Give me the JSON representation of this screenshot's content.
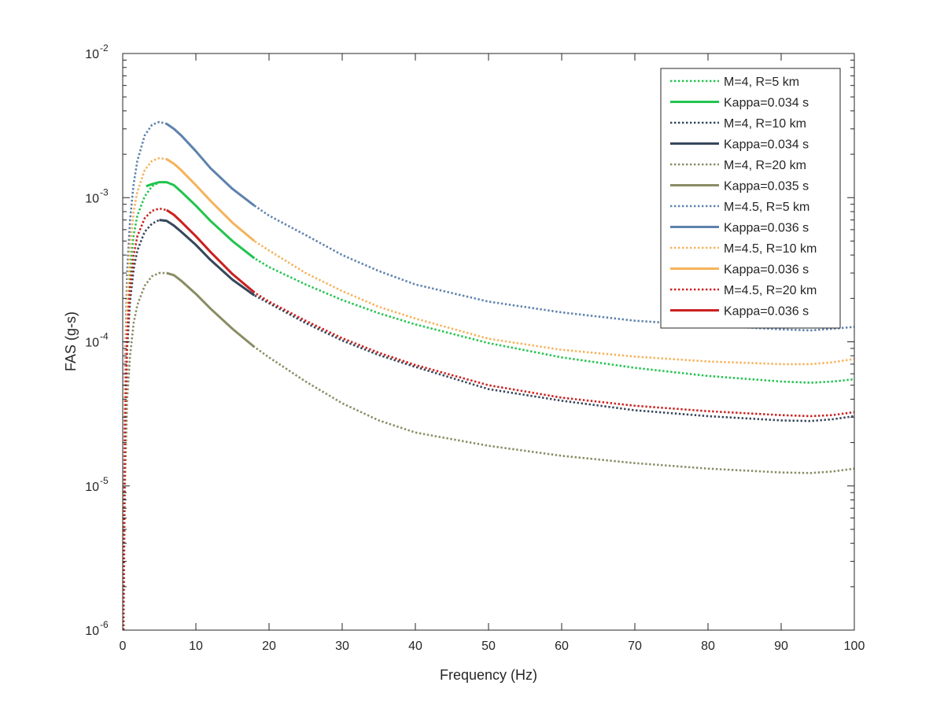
{
  "chart_data": {
    "type": "line",
    "title": "",
    "xlabel": "Frequency (Hz)",
    "ylabel": "FAS (g-s)",
    "xlim": [
      0,
      100
    ],
    "ylim": [
      1e-06,
      0.01
    ],
    "yscale": "log",
    "grid": false,
    "legend_position": "top-right",
    "x_ticks": [
      {
        "value": 0,
        "label": "0"
      },
      {
        "value": 10,
        "label": "10"
      },
      {
        "value": 20,
        "label": "20"
      },
      {
        "value": 30,
        "label": "30"
      },
      {
        "value": 40,
        "label": "40"
      },
      {
        "value": 50,
        "label": "50"
      },
      {
        "value": 60,
        "label": "60"
      },
      {
        "value": 70,
        "label": "70"
      },
      {
        "value": 80,
        "label": "80"
      },
      {
        "value": 90,
        "label": "90"
      },
      {
        "value": 100,
        "label": "100"
      }
    ],
    "y_ticks": [
      {
        "value": 1e-06,
        "base": "10",
        "exp": "-6"
      },
      {
        "value": 1e-05,
        "base": "10",
        "exp": "-5"
      },
      {
        "value": 0.0001,
        "base": "10",
        "exp": "-4"
      },
      {
        "value": 0.001,
        "base": "10",
        "exp": "-3"
      },
      {
        "value": 0.01,
        "base": "10",
        "exp": "-2"
      }
    ],
    "series": [
      {
        "name": "M=4, R=5 km",
        "style": "dotted",
        "color": "#22c44e",
        "x": [
          0.1,
          0.3,
          0.6,
          1,
          1.5,
          2,
          3,
          4,
          5,
          6,
          7,
          8,
          10,
          12,
          15,
          18,
          20,
          25,
          30,
          35,
          40,
          50,
          60,
          70,
          80,
          90,
          94,
          97,
          100
        ],
        "y": [
          1e-06,
          3e-05,
          0.00014,
          0.00032,
          0.00055,
          0.00075,
          0.00102,
          0.0012,
          0.00128,
          0.00128,
          0.00122,
          0.0011,
          0.00088,
          0.00069,
          0.0005,
          0.00038,
          0.00033,
          0.00025,
          0.000195,
          0.000158,
          0.000132,
          9.8e-05,
          7.8e-05,
          6.6e-05,
          5.8e-05,
          5.3e-05,
          5.2e-05,
          5.3e-05,
          5.5e-05
        ]
      },
      {
        "name": "Kappa=0.034 s",
        "style": "solid",
        "color": "#22c44e",
        "x": [
          3.2,
          4,
          5,
          6,
          7,
          8,
          10,
          12,
          15,
          18
        ],
        "y": [
          0.0012,
          0.00124,
          0.00128,
          0.00128,
          0.00122,
          0.0011,
          0.00088,
          0.00069,
          0.0005,
          0.00038
        ]
      },
      {
        "name": "M=4, R=10 km",
        "style": "dotted",
        "color": "#36475a",
        "x": [
          0.1,
          0.3,
          0.6,
          1,
          1.5,
          2,
          3,
          4,
          5,
          6,
          7,
          8,
          10,
          12,
          15,
          18,
          20,
          25,
          30,
          35,
          40,
          50,
          60,
          70,
          80,
          90,
          94,
          97,
          100
        ],
        "y": [
          1e-06,
          2e-05,
          9e-05,
          0.00019,
          0.00032,
          0.00043,
          0.00058,
          0.00066,
          0.0007,
          0.00069,
          0.00064,
          0.00058,
          0.00047,
          0.00037,
          0.00027,
          0.00021,
          0.000185,
          0.000135,
          0.000102,
          8.1e-05,
          6.7e-05,
          4.7e-05,
          3.9e-05,
          3.35e-05,
          3.05e-05,
          2.85e-05,
          2.82e-05,
          2.9e-05,
          3.05e-05
        ]
      },
      {
        "name": "Kappa=0.034 s",
        "style": "solid",
        "color": "#36475a",
        "x": [
          5,
          6,
          7,
          8,
          10,
          12,
          15,
          18
        ],
        "y": [
          0.0007,
          0.00069,
          0.00064,
          0.00058,
          0.00047,
          0.00037,
          0.00027,
          0.00021
        ]
      },
      {
        "name": "M=4, R=20 km",
        "style": "dotted",
        "color": "#8a8c64",
        "x": [
          0.1,
          0.3,
          0.6,
          1,
          1.5,
          2,
          3,
          4,
          5,
          6,
          7,
          8,
          10,
          12,
          15,
          18,
          20,
          25,
          30,
          35,
          40,
          50,
          60,
          70,
          80,
          90,
          94,
          97,
          100
        ],
        "y": [
          1e-06,
          1e-05,
          4e-05,
          8e-05,
          0.000135,
          0.00018,
          0.000245,
          0.000285,
          0.0003,
          0.0003,
          0.00029,
          0.000265,
          0.000215,
          0.00017,
          0.000123,
          9.2e-05,
          7.8e-05,
          5.3e-05,
          3.75e-05,
          2.85e-05,
          2.35e-05,
          1.9e-05,
          1.62e-05,
          1.44e-05,
          1.32e-05,
          1.24e-05,
          1.23e-05,
          1.26e-05,
          1.32e-05
        ]
      },
      {
        "name": "Kappa=0.035 s",
        "style": "solid",
        "color": "#8a8c64",
        "x": [
          6,
          7,
          8,
          10,
          12,
          15,
          18
        ],
        "y": [
          0.0003,
          0.00029,
          0.000265,
          0.000215,
          0.00017,
          0.000123,
          9.2e-05
        ]
      },
      {
        "name": "M=4.5, R=5 km",
        "style": "dotted",
        "color": "#5e82ad",
        "x": [
          0.1,
          0.3,
          0.6,
          1,
          1.5,
          2,
          3,
          4,
          5,
          6,
          7,
          8,
          10,
          12,
          15,
          18,
          20,
          25,
          30,
          35,
          40,
          50,
          60,
          70,
          80,
          90,
          94,
          97,
          100
        ],
        "y": [
          1e-06,
          6e-05,
          0.0003,
          0.0007,
          0.00125,
          0.0018,
          0.0027,
          0.0032,
          0.00335,
          0.00325,
          0.003,
          0.0027,
          0.0021,
          0.0016,
          0.00115,
          0.00088,
          0.00075,
          0.00055,
          0.0004,
          0.00031,
          0.00025,
          0.00019,
          0.00016,
          0.00014,
          0.00013,
          0.000122,
          0.00012,
          0.000123,
          0.000127
        ]
      },
      {
        "name": "Kappa=0.036 s",
        "style": "solid",
        "color": "#5e82ad",
        "x": [
          6,
          7,
          8,
          10,
          12,
          15,
          18
        ],
        "y": [
          0.00325,
          0.003,
          0.0027,
          0.0021,
          0.0016,
          0.00115,
          0.00088
        ]
      },
      {
        "name": "M=4.5, R=10 km",
        "style": "dotted",
        "color": "#f5b35c",
        "x": [
          0.1,
          0.3,
          0.6,
          1,
          1.5,
          2,
          3,
          4,
          5,
          6,
          7,
          8,
          10,
          12,
          15,
          18,
          20,
          25,
          30,
          35,
          40,
          50,
          60,
          70,
          80,
          90,
          94,
          97,
          100
        ],
        "y": [
          1e-06,
          4e-05,
          0.0002,
          0.00046,
          0.0008,
          0.0011,
          0.00155,
          0.0018,
          0.00188,
          0.00185,
          0.00172,
          0.00155,
          0.00122,
          0.00095,
          0.00067,
          0.0005,
          0.00043,
          0.0003,
          0.000225,
          0.000175,
          0.000145,
          0.000105,
          8.8e-05,
          7.9e-05,
          7.3e-05,
          7e-05,
          7e-05,
          7.2e-05,
          7.6e-05
        ]
      },
      {
        "name": "Kappa=0.036 s",
        "style": "solid",
        "color": "#f5b35c",
        "x": [
          6,
          7,
          8,
          10,
          12,
          15,
          18
        ],
        "y": [
          0.00185,
          0.00172,
          0.00155,
          0.00122,
          0.00095,
          0.00067,
          0.0005
        ]
      },
      {
        "name": "M=4.5, R=20 km",
        "style": "dotted",
        "color": "#cc2020",
        "x": [
          0.1,
          0.3,
          0.6,
          1,
          1.5,
          2,
          3,
          4,
          5,
          6,
          7,
          8,
          10,
          12,
          15,
          18,
          20,
          25,
          30,
          35,
          40,
          50,
          60,
          70,
          80,
          90,
          94,
          97,
          100
        ],
        "y": [
          1e-06,
          2.5e-05,
          0.00011,
          0.00024,
          0.0004,
          0.00054,
          0.00072,
          0.00081,
          0.00084,
          0.00082,
          0.00076,
          0.00068,
          0.00054,
          0.00042,
          0.000295,
          0.00022,
          0.00019,
          0.00014,
          0.000106,
          8.4e-05,
          6.9e-05,
          5e-05,
          4.1e-05,
          3.6e-05,
          3.3e-05,
          3.1e-05,
          3.05e-05,
          3.1e-05,
          3.25e-05
        ]
      },
      {
        "name": "Kappa=0.036 s",
        "style": "solid",
        "color": "#cc2020",
        "x": [
          6,
          7,
          8,
          10,
          12,
          15,
          18
        ],
        "y": [
          0.00082,
          0.00076,
          0.00068,
          0.00054,
          0.00042,
          0.000295,
          0.00022
        ]
      }
    ]
  }
}
